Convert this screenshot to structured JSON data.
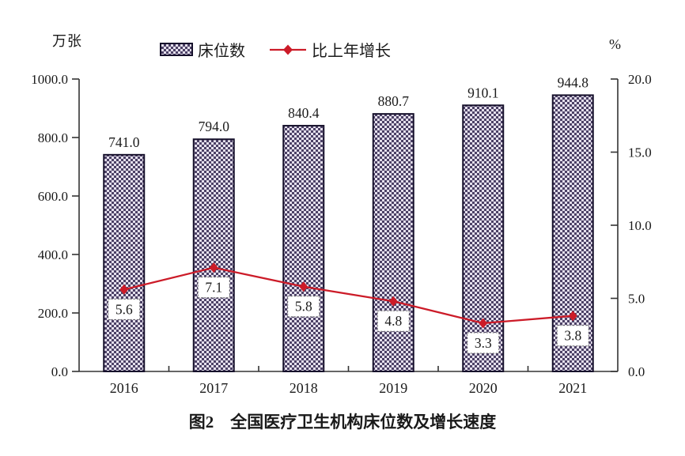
{
  "chart_data": {
    "type": "bar",
    "title": "图2　全国医疗卫生机构床位数及增长速度",
    "categories": [
      "2016",
      "2017",
      "2018",
      "2019",
      "2020",
      "2021"
    ],
    "series": [
      {
        "name": "床位数",
        "type": "bar",
        "axis": "left",
        "unit": "万张",
        "values": [
          741.0,
          794.0,
          840.4,
          880.7,
          910.1,
          944.8
        ],
        "data_labels": [
          "741.0",
          "794.0",
          "840.4",
          "880.7",
          "910.1",
          "944.8"
        ]
      },
      {
        "name": "比上年增长",
        "type": "line",
        "axis": "right",
        "unit": "%",
        "values": [
          5.6,
          7.1,
          5.8,
          4.8,
          3.3,
          3.8
        ],
        "data_labels": [
          "5.6",
          "7.1",
          "5.8",
          "4.8",
          "3.3",
          "3.8"
        ]
      }
    ],
    "left_axis": {
      "unit": "万张",
      "min": 0,
      "max": 1000,
      "step": 200,
      "tick_labels": [
        "1000.0",
        "800.0",
        "600.0",
        "400.0",
        "200.0",
        "0.0"
      ]
    },
    "right_axis": {
      "unit": "%",
      "min": 0,
      "max": 20,
      "step": 5,
      "tick_labels": [
        "20.0",
        "15.0",
        "10.0",
        "5.0",
        "0.0"
      ]
    },
    "legend_position": "top",
    "grid": false
  },
  "colors": {
    "bar_checker_dark": "#4c4166",
    "bar_checker_light": "#e4dfec",
    "bar_border": "#16102b",
    "line": "#cc1b28",
    "marker": "#cc1b28",
    "axis": "#333333",
    "text": "#1a1a1a",
    "label_box_border": "#666666",
    "label_box_fill": "#ffffff",
    "background": "#ffffff"
  }
}
